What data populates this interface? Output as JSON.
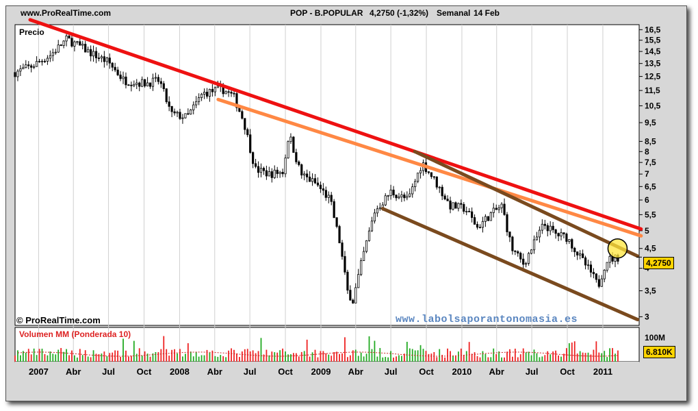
{
  "header": {
    "site": "www.ProRealTime.com",
    "ticker": "POP - B.POPULAR",
    "price_change": "4,2750 (-1,32%)",
    "period": "Semanal",
    "date": "14 Feb"
  },
  "price_panel": {
    "label": "Precio",
    "last_price": "4,2750",
    "copyright": "© ProRealTime.com",
    "watermark": "www.labolsaporantonomasia.es"
  },
  "volume_panel": {
    "label": "Volumen MM (Ponderada 10)",
    "scale_label": "100M",
    "last_volume": "6.810K"
  },
  "colors": {
    "up": "#22aa22",
    "down": "#ee2222",
    "trend_main": "#ee1111",
    "trend_secondary": "#ff8844",
    "channel": "#7a4a1e",
    "last_badge": "#ffd400",
    "watermark": "#5a86c0"
  },
  "chart_data": {
    "type": "candlestick",
    "y_scale": "log",
    "y_ticks": [
      "16,5",
      "15,5",
      "14,5",
      "13,5",
      "12,5",
      "11,5",
      "10,5",
      "9,5",
      "8,5",
      "8",
      "7,5",
      "7",
      "6,5",
      "6",
      "5,5",
      "5",
      "4,5",
      "4",
      "3,5",
      "3"
    ],
    "x_ticks": [
      "2007",
      "Abr",
      "Jul",
      "Oct",
      "2008",
      "Abr",
      "Jul",
      "Oct",
      "2009",
      "Abr",
      "Jul",
      "Oct",
      "2010",
      "Abr",
      "Jul",
      "Oct",
      "2011"
    ],
    "x_tick_dates": [
      "2007-01-01",
      "2007-04-01",
      "2007-07-01",
      "2007-10-01",
      "2008-01-01",
      "2008-04-01",
      "2008-07-01",
      "2008-10-01",
      "2009-01-01",
      "2009-04-01",
      "2009-07-01",
      "2009-10-01",
      "2010-01-01",
      "2010-04-01",
      "2010-07-01",
      "2010-10-01",
      "2011-01-01"
    ],
    "price_path": [
      [
        "2006-11-01",
        12.8
      ],
      [
        "2006-12-15",
        13.3
      ],
      [
        "2007-02-01",
        14.2
      ],
      [
        "2007-03-15",
        15.6
      ],
      [
        "2007-04-15",
        15.0
      ],
      [
        "2007-05-20",
        14.3
      ],
      [
        "2007-07-01",
        13.6
      ],
      [
        "2007-08-10",
        12.2
      ],
      [
        "2007-10-01",
        12.0
      ],
      [
        "2007-11-10",
        12.2
      ],
      [
        "2007-12-10",
        10.0
      ],
      [
        "2008-01-20",
        9.8
      ],
      [
        "2008-03-01",
        11.3
      ],
      [
        "2008-04-20",
        11.6
      ],
      [
        "2008-05-20",
        11.1
      ],
      [
        "2008-06-15",
        9.6
      ],
      [
        "2008-07-15",
        7.2
      ],
      [
        "2008-08-20",
        7.0
      ],
      [
        "2008-09-25",
        7.1
      ],
      [
        "2008-10-10",
        8.9
      ],
      [
        "2008-11-10",
        7.0
      ],
      [
        "2008-12-20",
        6.6
      ],
      [
        "2009-01-25",
        6.0
      ],
      [
        "2009-02-20",
        4.6
      ],
      [
        "2009-03-10",
        3.5
      ],
      [
        "2009-03-25",
        3.3
      ],
      [
        "2009-04-20",
        4.3
      ],
      [
        "2009-05-20",
        5.6
      ],
      [
        "2009-07-01",
        6.3
      ],
      [
        "2009-08-15",
        6.0
      ],
      [
        "2009-09-20",
        7.5
      ],
      [
        "2009-10-20",
        6.8
      ],
      [
        "2009-12-01",
        5.8
      ],
      [
        "2010-01-10",
        5.7
      ],
      [
        "2010-02-10",
        5.1
      ],
      [
        "2010-03-15",
        5.5
      ],
      [
        "2010-04-15",
        5.8
      ],
      [
        "2010-05-10",
        4.5
      ],
      [
        "2010-06-10",
        4.1
      ],
      [
        "2010-07-05",
        4.6
      ],
      [
        "2010-08-01",
        5.2
      ],
      [
        "2010-09-01",
        4.9
      ],
      [
        "2010-10-01",
        4.8
      ],
      [
        "2010-11-01",
        4.3
      ],
      [
        "2010-12-01",
        3.9
      ],
      [
        "2010-12-20",
        3.6
      ],
      [
        "2011-01-10",
        4.2
      ],
      [
        "2011-02-14",
        4.28
      ]
    ],
    "trendlines": [
      {
        "color": "#ee1111",
        "start": [
          "2006-12-10",
          17.5
        ],
        "end": [
          "2011-04-10",
          5.05
        ]
      },
      {
        "color": "#ff8844",
        "start": [
          "2008-04-10",
          10.9
        ],
        "end": [
          "2011-04-10",
          4.85
        ]
      },
      {
        "color": "#7a4a1e",
        "start": [
          "2009-09-01",
          8.0
        ],
        "end": [
          "2011-04-01",
          4.3
        ]
      },
      {
        "color": "#7a4a1e",
        "start": [
          "2009-06-10",
          5.7
        ],
        "end": [
          "2011-04-01",
          2.95
        ]
      }
    ],
    "highlight": {
      "date": "2011-02-01",
      "value": 4.5
    }
  }
}
